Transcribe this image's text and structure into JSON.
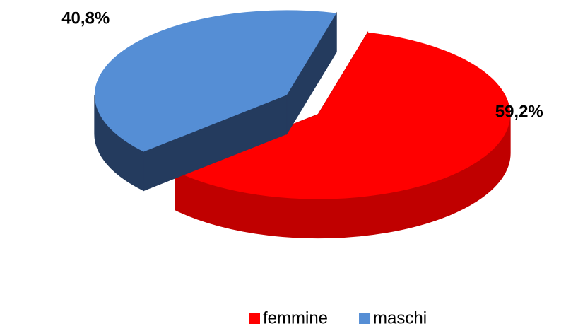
{
  "chart_data": {
    "type": "pie",
    "categories": [
      "femmine",
      "maschi"
    ],
    "values": [
      59.2,
      40.8
    ],
    "value_labels": [
      "59,2%",
      "40,8%"
    ],
    "colors": [
      "#ff0000",
      "#558ed5"
    ],
    "side_colors": [
      "#c00000",
      "#243b5e"
    ],
    "legend": "bottom"
  }
}
